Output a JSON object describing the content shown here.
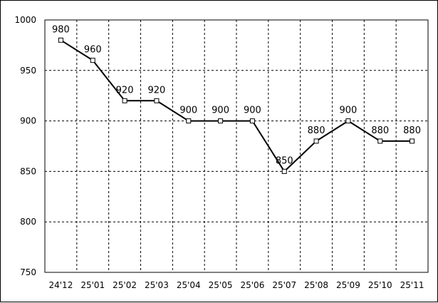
{
  "chart_data": {
    "type": "line",
    "title": "",
    "xlabel": "",
    "ylabel": "",
    "categories": [
      "24'12",
      "25'01",
      "25'02",
      "25'03",
      "25'04",
      "25'05",
      "25'06",
      "25'07",
      "25'08",
      "25'09",
      "25'10",
      "25'11"
    ],
    "series": [
      {
        "values": [
          980,
          960,
          920,
          920,
          900,
          900,
          900,
          850,
          880,
          900,
          880,
          880
        ]
      }
    ],
    "ylim": [
      750,
      1000
    ],
    "yticks": [
      750,
      800,
      850,
      900,
      950,
      1000
    ],
    "grid": true,
    "legend": "none",
    "data_labels": true,
    "colors": {
      "line": "#000000",
      "grid": "#000000",
      "background": "#ffffff"
    }
  }
}
